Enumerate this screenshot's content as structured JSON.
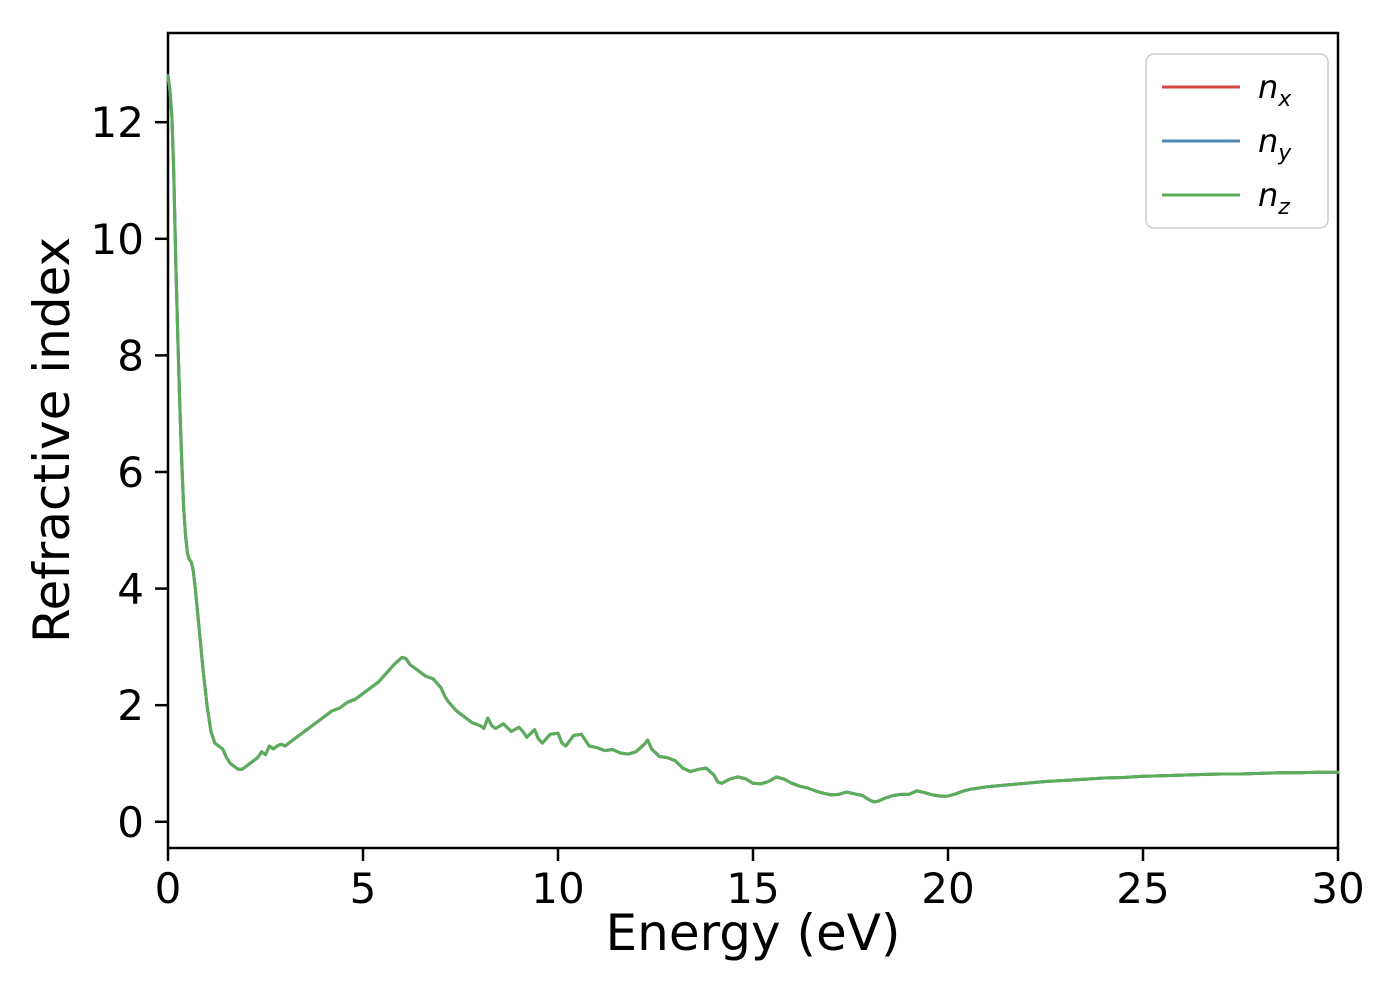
{
  "figure": {
    "background": "#ffffff",
    "spine_color": "#000000",
    "tick_color": "#000000",
    "text_color": "#000000"
  },
  "chart_data": {
    "type": "line",
    "title": "",
    "xlabel": "Energy (eV)",
    "ylabel": "Refractive index",
    "xlim": [
      0,
      30
    ],
    "ylim": [
      -0.45,
      13.53
    ],
    "xticks": [
      0,
      5,
      10,
      15,
      20,
      25,
      30
    ],
    "yticks": [
      0,
      2,
      4,
      6,
      8,
      10,
      12
    ],
    "grid": false,
    "legend_position": "upper right",
    "legend_frame_color": "#cccccc",
    "series_values_shared": true,
    "note": "All three series (n_x, n_y, n_z) overlap exactly; only the last-drawn green n_z curve is visible.",
    "x": [
      0,
      0.05,
      0.1,
      0.15,
      0.2,
      0.25,
      0.3,
      0.35,
      0.4,
      0.45,
      0.5,
      0.55,
      0.6,
      0.65,
      0.7,
      0.8,
      0.9,
      1.0,
      1.1,
      1.2,
      1.3,
      1.4,
      1.5,
      1.6,
      1.7,
      1.8,
      1.9,
      2.0,
      2.1,
      2.2,
      2.3,
      2.4,
      2.5,
      2.6,
      2.7,
      2.8,
      2.9,
      3.0,
      3.1,
      3.2,
      3.4,
      3.6,
      3.8,
      4.0,
      4.2,
      4.4,
      4.6,
      4.8,
      5.0,
      5.2,
      5.4,
      5.6,
      5.8,
      6.0,
      6.1,
      6.2,
      6.4,
      6.6,
      6.8,
      7.0,
      7.1,
      7.2,
      7.4,
      7.6,
      7.8,
      8.0,
      8.1,
      8.2,
      8.3,
      8.4,
      8.6,
      8.8,
      9.0,
      9.1,
      9.2,
      9.4,
      9.5,
      9.6,
      9.8,
      10.0,
      10.1,
      10.2,
      10.4,
      10.6,
      10.7,
      10.8,
      11.0,
      11.2,
      11.4,
      11.6,
      11.8,
      12.0,
      12.2,
      12.3,
      12.4,
      12.6,
      12.8,
      13.0,
      13.2,
      13.4,
      13.6,
      13.8,
      14.0,
      14.1,
      14.2,
      14.4,
      14.6,
      14.8,
      15.0,
      15.2,
      15.4,
      15.6,
      15.8,
      16.0,
      16.2,
      16.4,
      16.6,
      16.8,
      17.0,
      17.2,
      17.4,
      17.6,
      17.8,
      18.0,
      18.1,
      18.2,
      18.4,
      18.6,
      18.8,
      19.0,
      19.2,
      19.4,
      19.6,
      19.8,
      20.0,
      20.2,
      20.4,
      20.6,
      20.8,
      21.0,
      21.5,
      22.0,
      22.5,
      23.0,
      23.5,
      24.0,
      24.5,
      25.0,
      25.5,
      26.0,
      26.5,
      27.0,
      27.5,
      28.0,
      28.5,
      29.0,
      29.5,
      30.0
    ],
    "values": [
      12.8,
      12.55,
      12.1,
      11.1,
      9.6,
      8.3,
      7.2,
      6.2,
      5.4,
      4.9,
      4.6,
      4.5,
      4.45,
      4.3,
      4.0,
      3.3,
      2.6,
      2.0,
      1.55,
      1.35,
      1.3,
      1.25,
      1.1,
      1.0,
      0.95,
      0.9,
      0.9,
      0.95,
      1.0,
      1.05,
      1.1,
      1.2,
      1.15,
      1.3,
      1.25,
      1.3,
      1.33,
      1.3,
      1.35,
      1.4,
      1.5,
      1.6,
      1.7,
      1.8,
      1.9,
      1.95,
      2.05,
      2.1,
      2.2,
      2.3,
      2.4,
      2.55,
      2.7,
      2.82,
      2.8,
      2.7,
      2.6,
      2.5,
      2.45,
      2.3,
      2.15,
      2.05,
      1.9,
      1.8,
      1.7,
      1.65,
      1.6,
      1.78,
      1.65,
      1.6,
      1.68,
      1.55,
      1.62,
      1.55,
      1.45,
      1.58,
      1.42,
      1.35,
      1.5,
      1.52,
      1.35,
      1.3,
      1.48,
      1.5,
      1.4,
      1.3,
      1.27,
      1.22,
      1.24,
      1.18,
      1.16,
      1.2,
      1.32,
      1.4,
      1.25,
      1.12,
      1.1,
      1.05,
      0.92,
      0.86,
      0.9,
      0.92,
      0.8,
      0.68,
      0.66,
      0.73,
      0.77,
      0.74,
      0.66,
      0.65,
      0.69,
      0.77,
      0.73,
      0.66,
      0.61,
      0.58,
      0.53,
      0.49,
      0.46,
      0.47,
      0.51,
      0.48,
      0.45,
      0.37,
      0.34,
      0.35,
      0.41,
      0.45,
      0.47,
      0.47,
      0.53,
      0.5,
      0.46,
      0.44,
      0.44,
      0.48,
      0.53,
      0.56,
      0.58,
      0.6,
      0.63,
      0.66,
      0.69,
      0.71,
      0.73,
      0.75,
      0.76,
      0.78,
      0.79,
      0.8,
      0.81,
      0.82,
      0.82,
      0.83,
      0.84,
      0.84,
      0.85,
      0.85
    ],
    "series": [
      {
        "name": "n_x",
        "color": "#d94444"
      },
      {
        "name": "n_y",
        "color": "#4f87b5"
      },
      {
        "name": "n_z",
        "color": "#5bad5b"
      }
    ]
  }
}
